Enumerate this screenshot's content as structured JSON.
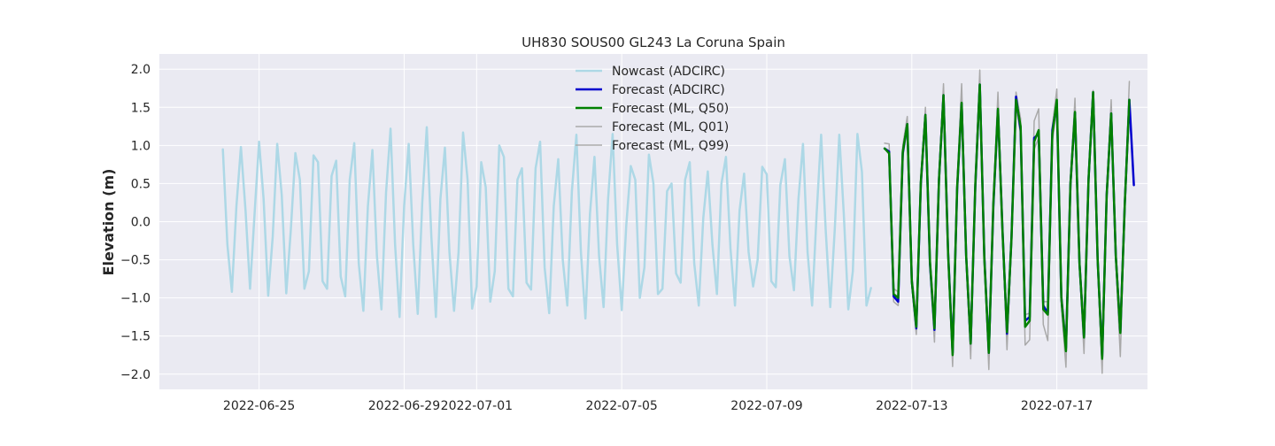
{
  "chart_data": {
    "type": "line",
    "title": "UH830 SOUS00 GL243 La Coruna Spain",
    "xlabel": "",
    "ylabel": "Elevation (m)",
    "ylim": [
      -2.2,
      2.2
    ],
    "y_ticks": [
      "2.0",
      "1.5",
      "1.0",
      "0.5",
      "0.0",
      "−0.5",
      "−1.0",
      "−1.5",
      "−2.0"
    ],
    "y_tick_values": [
      2.0,
      1.5,
      1.0,
      0.5,
      0.0,
      -0.5,
      -1.0,
      -1.5,
      -2.0
    ],
    "xlim": [
      "2022-06-22T06:00",
      "2022-07-19T12:00"
    ],
    "x_ticks": [
      "2022-06-25",
      "2022-06-29",
      "2022-07-01",
      "2022-07-05",
      "2022-07-09",
      "2022-07-13",
      "2022-07-17"
    ],
    "grid": true,
    "background": "#eaeaf2",
    "legend_position": "top-center",
    "series": [
      {
        "name": "Nowcast (ADCIRC)",
        "color": "#add8e6",
        "line_width": 2.5,
        "x_start": "2022-06-24T00:00",
        "x_step_hours": 3,
        "values": [
          0.95,
          -0.3,
          -0.92,
          0.2,
          0.98,
          0.15,
          -0.88,
          0.1,
          1.05,
          0.3,
          -0.97,
          -0.2,
          1.02,
          0.35,
          -0.94,
          -0.1,
          0.9,
          0.55,
          -0.88,
          -0.65,
          0.87,
          0.78,
          -0.78,
          -0.88,
          0.6,
          0.8,
          -0.72,
          -0.98,
          0.55,
          1.03,
          -0.55,
          -1.17,
          0.2,
          0.94,
          -0.45,
          -1.15,
          0.38,
          1.22,
          -0.3,
          -1.25,
          0.2,
          1.02,
          -0.3,
          -1.21,
          0.25,
          1.24,
          -0.2,
          -1.25,
          0.3,
          0.97,
          -0.4,
          -1.17,
          -0.4,
          1.17,
          0.55,
          -1.14,
          -0.85,
          0.78,
          0.45,
          -1.05,
          -0.65,
          1.0,
          0.85,
          -0.88,
          -0.98,
          0.55,
          0.7,
          -0.8,
          -0.89,
          0.7,
          1.05,
          -0.6,
          -1.2,
          0.2,
          0.82,
          -0.5,
          -1.1,
          0.4,
          1.14,
          -0.4,
          -1.27,
          0.1,
          0.85,
          -0.45,
          -1.12,
          0.3,
          1.15,
          -0.3,
          -1.16,
          -0.05,
          0.73,
          0.55,
          -1.0,
          -0.6,
          0.88,
          0.5,
          -0.95,
          -0.88,
          0.4,
          0.5,
          -0.68,
          -0.8,
          0.55,
          0.78,
          -0.55,
          -1.1,
          0.05,
          0.66,
          -0.3,
          -0.95,
          0.5,
          0.85,
          -0.35,
          -1.1,
          0.15,
          0.63,
          -0.4,
          -0.85,
          -0.5,
          0.72,
          0.62,
          -0.78,
          -0.86,
          0.48,
          0.82,
          -0.45,
          -0.9,
          0.3,
          1.02,
          -0.4,
          -1.1,
          0.1,
          1.14,
          -0.1,
          -1.12,
          -0.1,
          1.14,
          0.1,
          -1.15,
          -0.65,
          1.15,
          0.65,
          -1.1,
          -0.87
        ]
      },
      {
        "name": "Forecast (ADCIRC)",
        "color": "#0000cd",
        "line_width": 2.5,
        "x_start": "2022-07-12T06:00",
        "x_step_hours": 3,
        "values": [
          0.96,
          0.92,
          -0.98,
          -1.05,
          0.9,
          1.28,
          -0.78,
          -1.4,
          0.5,
          1.4,
          -0.55,
          -1.42,
          0.55,
          1.66,
          -0.4,
          -1.72,
          0.42,
          1.55,
          -0.45,
          -1.6,
          0.45,
          1.8,
          -0.45,
          -1.72,
          0.2,
          1.47,
          -0.1,
          -1.47,
          -0.2,
          1.64,
          1.2,
          -1.3,
          -1.25,
          1.1,
          1.15,
          -1.1,
          -1.2,
          1.2,
          1.55,
          -1.0,
          -1.66,
          0.5,
          1.43,
          -0.55,
          -1.52,
          0.55,
          1.7,
          -0.5,
          -1.78,
          0.35,
          1.42,
          -0.45,
          -1.45,
          0.25,
          1.6,
          0.48
        ]
      },
      {
        "name": "Forecast (ML, Q50)",
        "color": "#008000",
        "line_width": 2.5,
        "x_start": "2022-07-12T06:00",
        "x_step_hours": 3,
        "values": [
          0.96,
          0.9,
          -0.95,
          -1.0,
          0.92,
          1.28,
          -0.78,
          -1.38,
          0.52,
          1.4,
          -0.52,
          -1.4,
          0.55,
          1.66,
          -0.42,
          -1.75,
          0.45,
          1.56,
          -0.45,
          -1.6,
          0.48,
          1.8,
          -0.48,
          -1.72,
          0.24,
          1.48,
          -0.12,
          -1.45,
          -0.22,
          1.6,
          1.25,
          -1.38,
          -1.3,
          1.05,
          1.2,
          -1.15,
          -1.22,
          1.15,
          1.6,
          -1.0,
          -1.7,
          0.5,
          1.44,
          -0.55,
          -1.52,
          0.55,
          1.7,
          -0.5,
          -1.8,
          0.35,
          1.42,
          -0.45,
          -1.46,
          0.25,
          1.6
        ]
      },
      {
        "name": "Forecast (ML, Q01)",
        "color": "#a9a9a9",
        "line_width": 1.5,
        "x_start": "2022-07-12T06:00",
        "x_step_hours": 3,
        "values": [
          0.96,
          0.88,
          -1.05,
          -1.1,
          0.85,
          1.2,
          -0.85,
          -1.48,
          0.45,
          1.32,
          -0.6,
          -1.58,
          0.48,
          1.6,
          -0.5,
          -1.9,
          0.38,
          1.5,
          -0.52,
          -1.8,
          0.42,
          1.72,
          -0.55,
          -1.94,
          0.18,
          1.4,
          -0.18,
          -1.68,
          -0.28,
          1.5,
          1.15,
          -1.62,
          -1.55,
          0.95,
          1.1,
          -1.35,
          -1.56,
          1.05,
          1.5,
          -1.1,
          -1.91,
          0.42,
          1.35,
          -0.62,
          -1.73,
          0.48,
          1.62,
          -0.58,
          -1.99,
          0.28,
          1.33,
          -0.52,
          -1.77,
          0.18,
          1.5
        ]
      },
      {
        "name": "Forecast (ML, Q99)",
        "color": "#a9a9a9",
        "line_width": 1.5,
        "x_start": "2022-07-12T06:00",
        "x_step_hours": 3,
        "values": [
          1.03,
          1.02,
          -0.88,
          -0.92,
          1.0,
          1.38,
          -0.7,
          -1.25,
          0.6,
          1.5,
          -0.45,
          -1.28,
          0.62,
          1.81,
          -0.35,
          -1.58,
          0.52,
          1.81,
          -0.38,
          -1.48,
          0.55,
          1.99,
          -0.4,
          -1.56,
          0.3,
          1.7,
          -0.05,
          -1.32,
          -0.15,
          1.7,
          1.35,
          -1.22,
          -1.2,
          1.32,
          1.48,
          -1.05,
          -1.05,
          1.25,
          1.74,
          -0.92,
          -1.52,
          0.58,
          1.62,
          -0.48,
          -1.35,
          0.62,
          1.72,
          -0.42,
          -1.62,
          0.42,
          1.6,
          -0.38,
          -1.32,
          0.32,
          1.84
        ]
      }
    ]
  }
}
